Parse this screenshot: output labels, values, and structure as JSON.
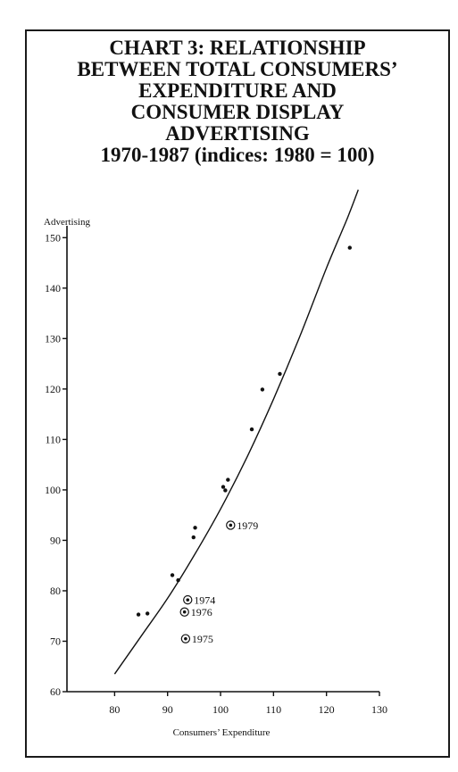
{
  "chart_data": {
    "type": "scatter",
    "title_lines": [
      "CHART 3:   RELATIONSHIP",
      "BETWEEN TOTAL CONSUMERS’",
      "EXPENDITURE AND",
      "CONSUMER DISPLAY",
      "ADVERTISING",
      "1970-1987 (indices: 1980 = 100)"
    ],
    "xlabel": "Consumers’ Expenditure",
    "ylabel": "Advertising",
    "xlim": [
      71,
      130
    ],
    "ylim": [
      60,
      152
    ],
    "x_ticks": [
      80,
      90,
      100,
      110,
      120,
      130
    ],
    "y_ticks": [
      60,
      70,
      80,
      90,
      100,
      110,
      120,
      130,
      140,
      150
    ],
    "points": [
      {
        "x": 84.5,
        "y": 75.3
      },
      {
        "x": 86.2,
        "y": 75.5
      },
      {
        "x": 90.9,
        "y": 83.1
      },
      {
        "x": 92.0,
        "y": 82.1
      },
      {
        "x": 94.9,
        "y": 90.6
      },
      {
        "x": 95.2,
        "y": 92.5
      },
      {
        "x": 100.5,
        "y": 100.6
      },
      {
        "x": 100.9,
        "y": 99.9
      },
      {
        "x": 101.4,
        "y": 102.0
      },
      {
        "x": 105.9,
        "y": 112.0
      },
      {
        "x": 107.9,
        "y": 119.9
      },
      {
        "x": 111.2,
        "y": 123.0
      },
      {
        "x": 124.4,
        "y": 148.0
      }
    ],
    "annotated_points": [
      {
        "x": 93.8,
        "y": 78.2,
        "label": "1974"
      },
      {
        "x": 93.2,
        "y": 75.8,
        "label": "1976"
      },
      {
        "x": 93.4,
        "y": 70.5,
        "label": "1975"
      },
      {
        "x": 101.9,
        "y": 93.0,
        "label": "1979"
      }
    ],
    "trend_curve": [
      {
        "x": 80.0,
        "y": 63.5
      },
      {
        "x": 85.0,
        "y": 71.0
      },
      {
        "x": 90.0,
        "y": 78.5
      },
      {
        "x": 95.0,
        "y": 87.0
      },
      {
        "x": 100.0,
        "y": 96.2
      },
      {
        "x": 105.0,
        "y": 106.5
      },
      {
        "x": 110.0,
        "y": 118.0
      },
      {
        "x": 115.0,
        "y": 130.5
      },
      {
        "x": 120.0,
        "y": 144.0
      },
      {
        "x": 124.0,
        "y": 154.0
      },
      {
        "x": 126.0,
        "y": 159.5
      }
    ],
    "grid": false,
    "legend": "none"
  }
}
